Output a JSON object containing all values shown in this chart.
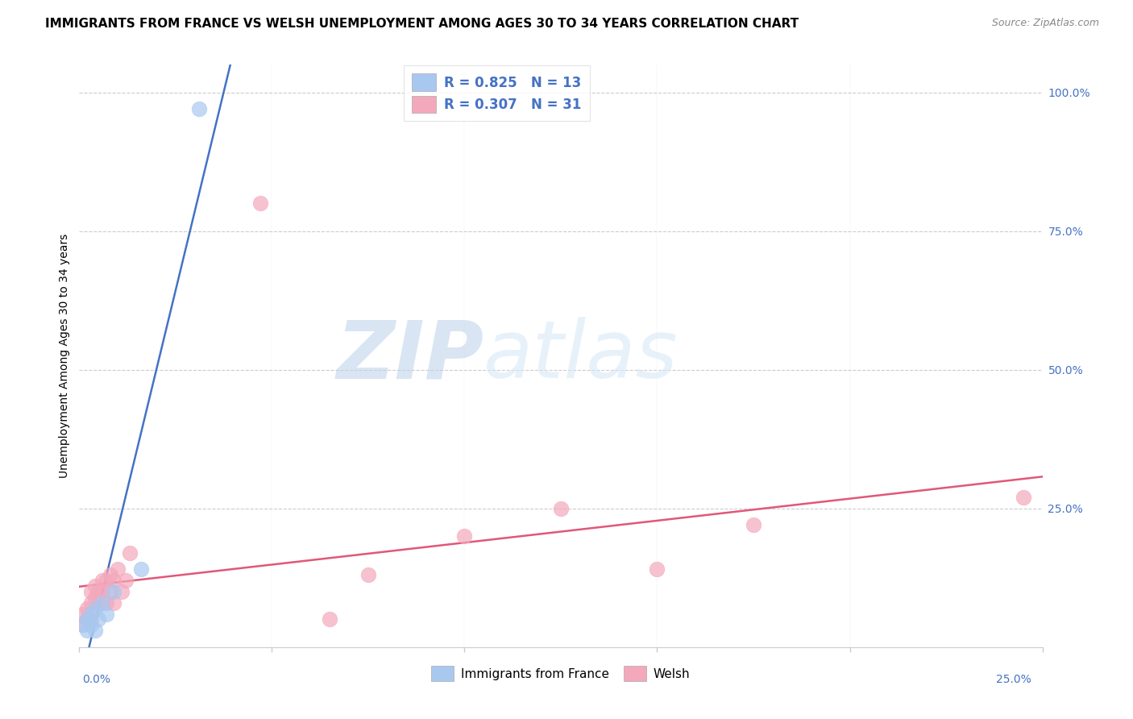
{
  "title": "IMMIGRANTS FROM FRANCE VS WELSH UNEMPLOYMENT AMONG AGES 30 TO 34 YEARS CORRELATION CHART",
  "source": "Source: ZipAtlas.com",
  "ylabel": "Unemployment Among Ages 30 to 34 years",
  "yticks": [
    0.0,
    0.25,
    0.5,
    0.75,
    1.0
  ],
  "ytick_labels": [
    "",
    "25.0%",
    "50.0%",
    "75.0%",
    "100.0%"
  ],
  "xticks": [
    0.0,
    0.05,
    0.1,
    0.15,
    0.2,
    0.25
  ],
  "xlim": [
    0.0,
    0.25
  ],
  "ylim": [
    0.0,
    1.05
  ],
  "france_R": 0.825,
  "france_N": 13,
  "welsh_R": 0.307,
  "welsh_N": 31,
  "france_color": "#A8C8F0",
  "welsh_color": "#F4A8BC",
  "france_line_color": "#4472C4",
  "welsh_line_color": "#E05878",
  "legend_text_color": "#4472C4",
  "france_scatter_x": [
    0.001,
    0.002,
    0.002,
    0.003,
    0.003,
    0.004,
    0.004,
    0.005,
    0.006,
    0.007,
    0.009,
    0.016,
    0.031
  ],
  "france_scatter_y": [
    0.04,
    0.03,
    0.05,
    0.04,
    0.06,
    0.03,
    0.07,
    0.05,
    0.08,
    0.06,
    0.1,
    0.14,
    0.97
  ],
  "welsh_scatter_x": [
    0.001,
    0.001,
    0.002,
    0.002,
    0.003,
    0.003,
    0.003,
    0.004,
    0.004,
    0.005,
    0.005,
    0.006,
    0.006,
    0.007,
    0.007,
    0.008,
    0.008,
    0.009,
    0.009,
    0.01,
    0.011,
    0.012,
    0.013,
    0.047,
    0.065,
    0.075,
    0.1,
    0.125,
    0.15,
    0.175,
    0.245
  ],
  "welsh_scatter_y": [
    0.04,
    0.06,
    0.05,
    0.07,
    0.05,
    0.08,
    0.1,
    0.09,
    0.11,
    0.08,
    0.1,
    0.1,
    0.12,
    0.08,
    0.12,
    0.1,
    0.13,
    0.12,
    0.08,
    0.14,
    0.1,
    0.12,
    0.17,
    0.8,
    0.05,
    0.13,
    0.2,
    0.25,
    0.14,
    0.22,
    0.27
  ],
  "watermark_zip": "ZIP",
  "watermark_atlas": "atlas",
  "background_color": "#FFFFFF",
  "grid_color": "#CCCCCC",
  "title_fontsize": 11,
  "axis_label_fontsize": 10,
  "tick_fontsize": 10
}
